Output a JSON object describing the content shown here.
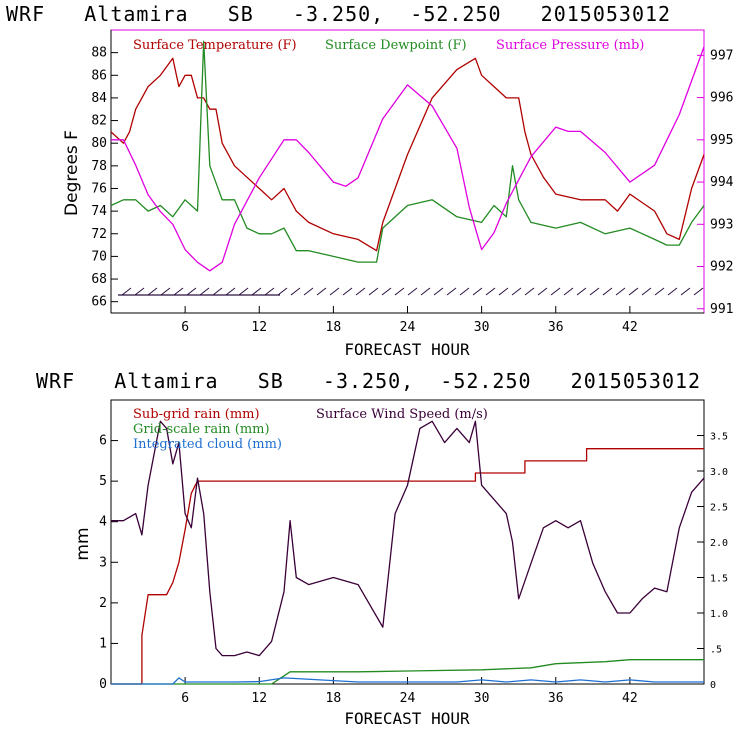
{
  "colors": {
    "temperature": "#b00000",
    "dewpoint": "#228b22",
    "pressure": "#e000e0",
    "subgrid_rain": "#b00000",
    "gridscale_rain": "#228b22",
    "cloud": "#1e6fd0",
    "wind": "#3a0038",
    "wind_barbs": "#2a1040"
  },
  "chart_data": [
    {
      "type": "line",
      "title": "WRF   Altamira   SB   -3.250,  -52.250   2015053012",
      "xlabel": "FORECAST HOUR",
      "ylabel": "Degrees F",
      "x_ticks": [
        "6",
        "12",
        "18",
        "24",
        "30",
        "36",
        "42"
      ],
      "x_tick_values": [
        6,
        12,
        18,
        24,
        30,
        36,
        42
      ],
      "xlim": [
        0,
        48
      ],
      "ylim": [
        65,
        90
      ],
      "y_ticks": [
        "66",
        "68",
        "70",
        "72",
        "74",
        "76",
        "78",
        "80",
        "82",
        "84",
        "86",
        "88"
      ],
      "y_tick_values": [
        66,
        68,
        70,
        72,
        74,
        76,
        78,
        80,
        82,
        84,
        86,
        88
      ],
      "y2label": "Surface Pressure (mb)",
      "y2lim": [
        990.9,
        997.6
      ],
      "y2_ticks": [
        "991",
        "992",
        "993",
        "994",
        "995",
        "996",
        "997"
      ],
      "y2_tick_values": [
        991,
        992,
        993,
        994,
        995,
        996,
        997
      ],
      "legend": [
        "Surface Temperature (F)",
        "Surface Dewpoint (F)",
        "Surface Pressure (mb)"
      ],
      "series": [
        {
          "name": "Surface Temperature (F)",
          "x": [
            0,
            1,
            1.5,
            2,
            2.5,
            3,
            4,
            5,
            5.5,
            6,
            6.5,
            7,
            7.5,
            8,
            8.5,
            9,
            10,
            11,
            12,
            13,
            14,
            15,
            16,
            18,
            20,
            21.5,
            22,
            24,
            26,
            28,
            29.5,
            30,
            31,
            32,
            33,
            33.5,
            34,
            35,
            36,
            38,
            40,
            41,
            42,
            44,
            45,
            46,
            47,
            48
          ],
          "values": [
            81,
            80,
            81,
            83,
            84,
            85,
            86,
            87.5,
            85,
            86,
            86,
            84,
            84,
            83,
            83,
            80,
            78,
            77,
            76,
            75,
            76,
            74,
            73,
            72,
            71.5,
            70.5,
            73,
            79,
            84,
            86.5,
            87.5,
            86,
            85,
            84,
            84,
            81,
            79,
            77,
            75.5,
            75,
            75,
            74,
            75.5,
            74,
            72,
            71.5,
            76,
            79
          ]
        },
        {
          "name": "Surface Dewpoint (F)",
          "x": [
            0,
            1,
            2,
            3,
            4,
            5,
            6,
            7,
            7.5,
            8,
            8.5,
            9,
            10,
            11,
            12,
            13,
            14,
            15,
            16,
            18,
            20,
            21.5,
            22,
            24,
            26,
            28,
            30,
            31,
            32,
            32.5,
            33,
            34,
            36,
            38,
            40,
            42,
            44,
            45,
            46,
            47,
            48
          ],
          "values": [
            74.5,
            75,
            75,
            74,
            74.5,
            73.5,
            75,
            74,
            89,
            78,
            76.5,
            75,
            75,
            72.5,
            72,
            72,
            72.5,
            70.5,
            70.5,
            70,
            69.5,
            69.5,
            72.5,
            74.5,
            75,
            73.5,
            73,
            74.5,
            73.5,
            78,
            75,
            73,
            72.5,
            73,
            72,
            72.5,
            71.5,
            71,
            71,
            73,
            74.5
          ]
        },
        {
          "name": "Surface Pressure (mb)",
          "x": [
            0,
            1,
            2,
            3,
            4,
            5,
            6,
            7,
            8,
            9,
            10,
            12,
            14,
            15,
            16,
            18,
            19,
            20,
            22,
            24,
            26,
            28,
            29,
            30,
            31,
            32,
            34,
            36,
            37,
            38,
            40,
            42,
            44,
            46,
            48
          ],
          "values": [
            995,
            995,
            994.4,
            993.7,
            993.3,
            993,
            992.4,
            992.1,
            991.9,
            992.1,
            993,
            994.1,
            995,
            995,
            994.7,
            994,
            993.9,
            994.1,
            995.5,
            996.3,
            995.8,
            994.8,
            993.4,
            992.4,
            992.8,
            993.5,
            994.6,
            995.3,
            995.2,
            995.2,
            994.7,
            994,
            994.4,
            995.6,
            997.2
          ]
        }
      ]
    },
    {
      "type": "line",
      "title": "WRF   Altamira   SB   -3.250,  -52.250   2015053012",
      "xlabel": "FORECAST HOUR",
      "ylabel": "mm",
      "x_ticks": [
        "6",
        "12",
        "18",
        "24",
        "30",
        "36",
        "42"
      ],
      "x_tick_values": [
        6,
        12,
        18,
        24,
        30,
        36,
        42
      ],
      "xlim": [
        0,
        48
      ],
      "ylim": [
        0,
        7
      ],
      "y_ticks": [
        "0",
        "1",
        "2",
        "3",
        "4",
        "5",
        "6"
      ],
      "y_tick_values": [
        0,
        1,
        2,
        3,
        4,
        5,
        6
      ],
      "y2label": "Surface Wind Speed (m/s)",
      "y2lim": [
        0,
        4
      ],
      "y2_ticks": [
        "0",
        ".5",
        "1.0",
        "1.5",
        "2.0",
        "2.5",
        "3.0",
        "3.5"
      ],
      "y2_tick_values": [
        0,
        0.5,
        1.0,
        1.5,
        2.0,
        2.5,
        3.0,
        3.5
      ],
      "legend": [
        "Sub-grid rain (mm)",
        "Grid-scale rain (mm)",
        "Integrated cloud (mm)",
        "Surface Wind Speed (m/s)"
      ],
      "series": [
        {
          "name": "Sub-grid rain (mm)",
          "x": [
            0,
            2.5,
            2.5,
            3,
            4.5,
            5,
            5.5,
            6,
            6.5,
            7,
            29.5,
            29.5,
            33.5,
            33.5,
            38.5,
            38.5,
            48
          ],
          "values": [
            0,
            0,
            1.2,
            2.2,
            2.2,
            2.5,
            3,
            3.8,
            4.7,
            5,
            5,
            5.2,
            5.2,
            5.5,
            5.5,
            5.8,
            5.8
          ]
        },
        {
          "name": "Grid-scale rain (mm)",
          "x": [
            0,
            13,
            13.5,
            14.5,
            20,
            24,
            30,
            34,
            36,
            40,
            42,
            44,
            48
          ],
          "values": [
            0,
            0,
            0.1,
            0.3,
            0.3,
            0.32,
            0.35,
            0.4,
            0.5,
            0.55,
            0.6,
            0.6,
            0.6
          ]
        },
        {
          "name": "Integrated cloud (mm)",
          "x": [
            0,
            5,
            5.5,
            6,
            10,
            12,
            14,
            20,
            24,
            28,
            30,
            32,
            34,
            36,
            38,
            40,
            42,
            44,
            48
          ],
          "values": [
            0,
            0,
            0.15,
            0.05,
            0.05,
            0.06,
            0.15,
            0.05,
            0.05,
            0.05,
            0.1,
            0.05,
            0.1,
            0.05,
            0.1,
            0.05,
            0.1,
            0.05,
            0.05
          ]
        },
        {
          "name": "Surface Wind Speed (m/s)",
          "x": [
            0,
            1,
            2,
            2.5,
            3,
            4,
            4.5,
            5,
            5.5,
            6,
            6.5,
            7,
            7.5,
            8,
            8.5,
            9,
            10,
            11,
            12,
            13,
            14,
            14.5,
            15,
            16,
            18,
            20,
            22,
            23,
            24,
            25,
            26,
            27,
            28,
            29,
            29.5,
            30,
            31,
            32,
            32.5,
            33,
            34,
            35,
            36,
            37,
            38,
            39,
            40,
            41,
            42,
            43,
            44,
            45,
            46,
            47,
            48
          ],
          "values": [
            2.3,
            2.3,
            2.4,
            2.1,
            2.8,
            3.7,
            3.6,
            3.1,
            3.4,
            2.4,
            2.2,
            2.9,
            2.4,
            1.3,
            0.5,
            0.4,
            0.4,
            0.45,
            0.4,
            0.6,
            1.3,
            2.3,
            1.5,
            1.4,
            1.5,
            1.4,
            0.8,
            2.4,
            2.8,
            3.6,
            3.7,
            3.4,
            3.6,
            3.4,
            3.7,
            2.8,
            2.6,
            2.4,
            2.0,
            1.2,
            1.7,
            2.2,
            2.3,
            2.2,
            2.3,
            1.7,
            1.3,
            1.0,
            1.0,
            1.2,
            1.35,
            1.3,
            2.2,
            2.7,
            2.9
          ]
        }
      ]
    }
  ]
}
